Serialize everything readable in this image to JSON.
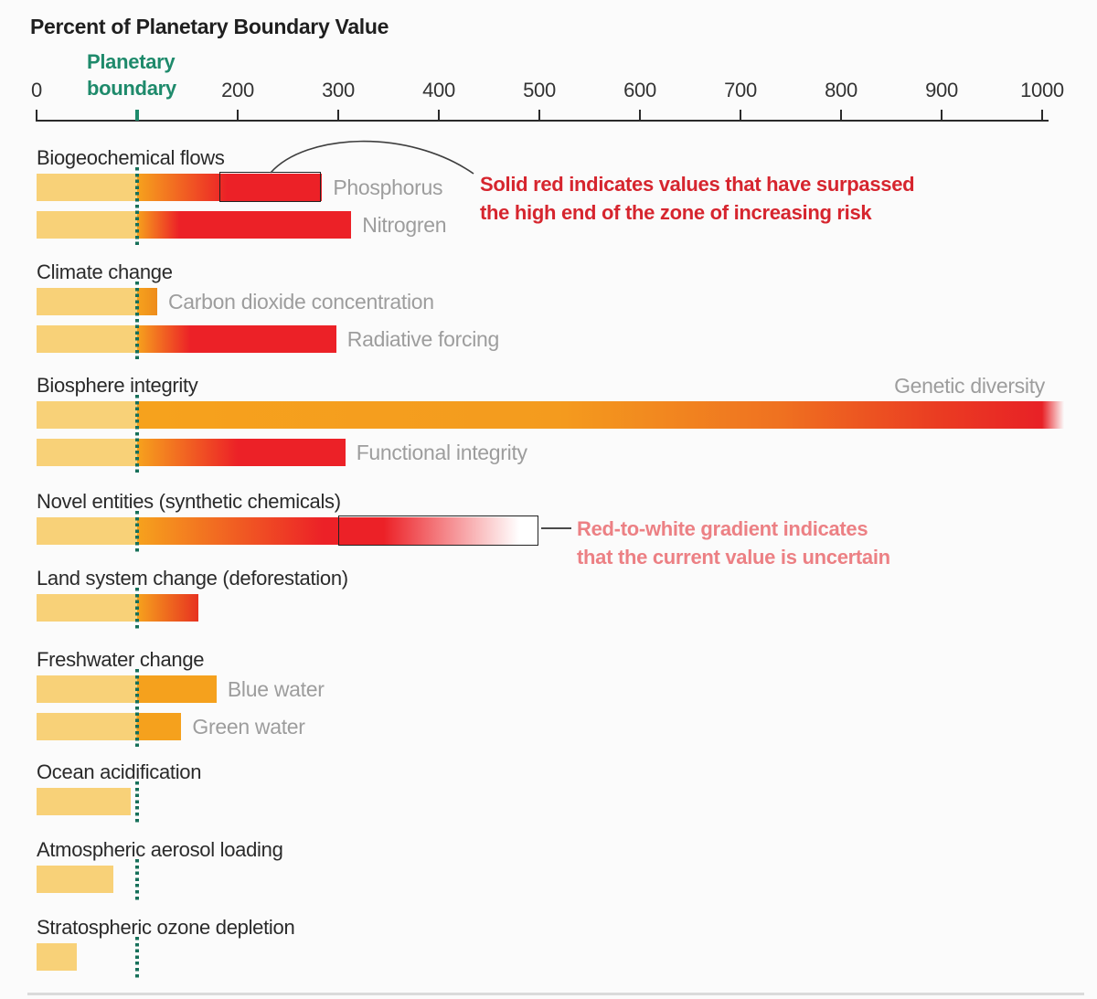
{
  "title": "Percent of Planetary Boundary Value",
  "axis": {
    "tick_labels": [
      "0",
      "200",
      "300",
      "400",
      "500",
      "600",
      "700",
      "800",
      "900",
      "1000"
    ],
    "tick_values": [
      0,
      200,
      300,
      400,
      500,
      600,
      700,
      800,
      900,
      1000
    ],
    "boundary": {
      "value": 100,
      "label_lines": [
        "Planetary",
        "boundary"
      ]
    }
  },
  "annotations": {
    "surpassed": {
      "lines": [
        "Solid red indicates values that have surpassed",
        "the high end of the zone of increasing risk"
      ],
      "color": "#D6252E"
    },
    "uncertain": {
      "lines": [
        "Red-to-white gradient indicates",
        "that the current value is uncertain"
      ],
      "color": "#EC8084"
    }
  },
  "colors": {
    "safe_yellow": "#F8D178",
    "risk_orange": "#F6A21D",
    "danger_red": "#EC2127",
    "boundary_green": "#1E8A6B",
    "label_gray": "#9D9D9D",
    "title_black": "#1F1F1F"
  },
  "chart_data": {
    "type": "bar",
    "title": "Percent of Planetary Boundary Value",
    "xlabel": "Percent of Planetary Boundary Value",
    "xlim": [
      0,
      1000
    ],
    "boundary_value": 100,
    "grid": false,
    "groups": [
      {
        "label": "Biogeochemical flows",
        "bars": [
          {
            "name": "Phosphorus",
            "value": 284,
            "outline": [
              182,
              284
            ],
            "stops": [
              [
                0,
                "#F8D178"
              ],
              [
                100,
                "#F8D178"
              ],
              [
                100,
                "#F6A21D"
              ],
              [
                190,
                "#EC2127"
              ],
              [
                284,
                "#EC2127"
              ]
            ]
          },
          {
            "name": "Nitrogren",
            "value": 313,
            "stops": [
              [
                0,
                "#F8D178"
              ],
              [
                100,
                "#F8D178"
              ],
              [
                100,
                "#F6A21D"
              ],
              [
                142,
                "#EC2127"
              ],
              [
                313,
                "#EC2127"
              ]
            ]
          }
        ]
      },
      {
        "label": "Climate change",
        "bars": [
          {
            "name": "Carbon dioxide concentration",
            "value": 120,
            "stops": [
              [
                0,
                "#F8D178"
              ],
              [
                100,
                "#F8D178"
              ],
              [
                100,
                "#F6A21D"
              ],
              [
                120,
                "#EE8C1C"
              ]
            ]
          },
          {
            "name": "Radiative forcing",
            "value": 298,
            "stops": [
              [
                0,
                "#F8D178"
              ],
              [
                100,
                "#F8D178"
              ],
              [
                100,
                "#F6A21D"
              ],
              [
                153,
                "#EC2127"
              ],
              [
                298,
                "#EC2127"
              ]
            ]
          }
        ]
      },
      {
        "label": "Biosphere integrity",
        "bars": [
          {
            "name": "Genetic diversity",
            "value": 1022,
            "off_scale": true,
            "label_above": true,
            "stops": [
              [
                0,
                "#F8D178"
              ],
              [
                100,
                "#F8D178"
              ],
              [
                100,
                "#F6A21D"
              ],
              [
                520,
                "#F49B1E"
              ],
              [
                740,
                "#EF7120"
              ],
              [
                900,
                "#EA3B22"
              ],
              [
                1000,
                "#E82126"
              ],
              [
                1022,
                "rgba(233,33,38,0)"
              ]
            ]
          },
          {
            "name": "Functional integrity",
            "value": 307,
            "stops": [
              [
                0,
                "#F8D178"
              ],
              [
                100,
                "#F8D178"
              ],
              [
                100,
                "#F6A21D"
              ],
              [
                200,
                "#EC2127"
              ],
              [
                307,
                "#EC2127"
              ]
            ]
          }
        ]
      },
      {
        "label": "Novel entities (synthetic chemicals)",
        "bars": [
          {
            "name": "",
            "value": 500,
            "uncertain": [
              300,
              500
            ],
            "stops": [
              [
                0,
                "#F8D178"
              ],
              [
                100,
                "#F8D178"
              ],
              [
                100,
                "#F6A21D"
              ],
              [
                285,
                "#EC2127"
              ],
              [
                345,
                "#EC2127"
              ],
              [
                480,
                "#FFFFFF"
              ],
              [
                500,
                "#FFFFFF"
              ]
            ]
          }
        ]
      },
      {
        "label": "Land system change (deforestation)",
        "bars": [
          {
            "name": "",
            "value": 161,
            "stops": [
              [
                0,
                "#F8D178"
              ],
              [
                100,
                "#F8D178"
              ],
              [
                100,
                "#F6A21D"
              ],
              [
                161,
                "#E73220"
              ]
            ]
          }
        ]
      },
      {
        "label": "Freshwater change",
        "bars": [
          {
            "name": "Blue water",
            "value": 179,
            "stops": [
              [
                0,
                "#F8D178"
              ],
              [
                100,
                "#F8D178"
              ],
              [
                100,
                "#F5A11D"
              ],
              [
                179,
                "#F5A11D"
              ]
            ]
          },
          {
            "name": "Green water",
            "value": 144,
            "stops": [
              [
                0,
                "#F8D178"
              ],
              [
                100,
                "#F8D178"
              ],
              [
                100,
                "#F5A11D"
              ],
              [
                144,
                "#F5A11D"
              ]
            ]
          }
        ]
      },
      {
        "label": "Ocean acidification",
        "bars": [
          {
            "name": "",
            "value": 94,
            "stops": [
              [
                0,
                "#F8D178"
              ],
              [
                94,
                "#F8D178"
              ]
            ]
          }
        ]
      },
      {
        "label": "Atmospheric aerosol loading",
        "bars": [
          {
            "name": "",
            "value": 76,
            "stops": [
              [
                0,
                "#F8D178"
              ],
              [
                76,
                "#F8D178"
              ]
            ]
          }
        ]
      },
      {
        "label": "Stratospheric ozone depletion",
        "bars": [
          {
            "name": "",
            "value": 40,
            "stops": [
              [
                0,
                "#F8D178"
              ],
              [
                40,
                "#F8D178"
              ]
            ]
          }
        ]
      }
    ]
  }
}
